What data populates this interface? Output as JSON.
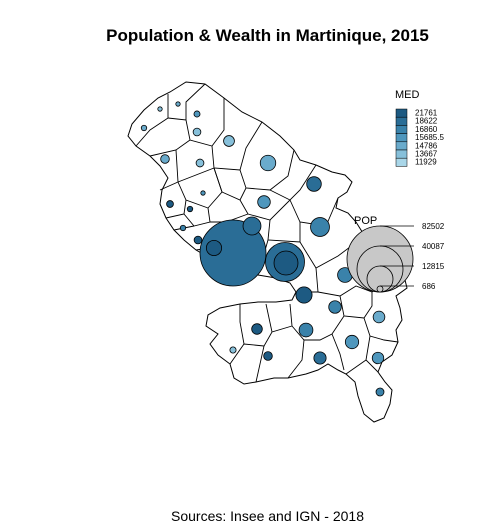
{
  "title": "Population & Wealth in Martinique, 2015",
  "source": "Sources: Insee and IGN - 2018",
  "legend_med": {
    "title": "MED",
    "classes": [
      {
        "label": "21761",
        "color": "#1d5a82"
      },
      {
        "label": "18622",
        "color": "#2a6d96"
      },
      {
        "label": "16860",
        "color": "#3a82aa"
      },
      {
        "label": "15685.5",
        "color": "#4f97bd"
      },
      {
        "label": "14786",
        "color": "#6aabcc"
      },
      {
        "label": "13667",
        "color": "#87c0da"
      },
      {
        "label": "11929",
        "color": "#a9d6e8"
      }
    ]
  },
  "legend_pop": {
    "title": "POP",
    "values": [
      {
        "label": "82502",
        "pop": 82502
      },
      {
        "label": "40087",
        "pop": 40087
      },
      {
        "label": "12815",
        "pop": 12815
      },
      {
        "label": "686",
        "pop": 686
      }
    ]
  },
  "communes": [
    {
      "pop": 330,
      "med": 13667
    },
    {
      "pop": 270,
      "med": 14786
    },
    {
      "pop": 700,
      "med": 15685.5
    },
    {
      "pop": 560,
      "med": 14786
    },
    {
      "pop": 1140,
      "med": 13667
    },
    {
      "pop": 2240,
      "med": 13667
    },
    {
      "pop": 1420,
      "med": 14786
    },
    {
      "pop": 1170,
      "med": 13667
    },
    {
      "pop": 4550,
      "med": 14786
    },
    {
      "pop": 220,
      "med": 15685.5
    },
    {
      "pop": 890,
      "med": 21761
    },
    {
      "pop": 570,
      "med": 21761
    },
    {
      "pop": 4050,
      "med": 18622
    },
    {
      "pop": 3010,
      "med": 15685.5
    },
    {
      "pop": 560,
      "med": 16860
    },
    {
      "pop": 1150,
      "med": 21761
    },
    {
      "pop": 6110,
      "med": 18622
    },
    {
      "pop": 6780,
      "med": 16860
    },
    {
      "pop": 4430,
      "med": 21761
    },
    {
      "pop": 82502,
      "med": 18622
    },
    {
      "pop": 10890,
      "med": 21761
    },
    {
      "pop": 28840,
      "med": 18622
    },
    {
      "pop": 4160,
      "med": 16860
    },
    {
      "pop": 4960,
      "med": 21761
    },
    {
      "pop": 2980,
      "med": 16860
    },
    {
      "pop": 2590,
      "med": 14786
    },
    {
      "pop": 2150,
      "med": 21761
    },
    {
      "pop": 3620,
      "med": 16860
    },
    {
      "pop": 3380,
      "med": 15685.5
    },
    {
      "pop": 730,
      "med": 13667
    },
    {
      "pop": 1430,
      "med": 21761
    },
    {
      "pop": 2850,
      "med": 18622
    },
    {
      "pop": 2510,
      "med": 15685.5
    },
    {
      "pop": 1210,
      "med": 16860
    }
  ]
}
